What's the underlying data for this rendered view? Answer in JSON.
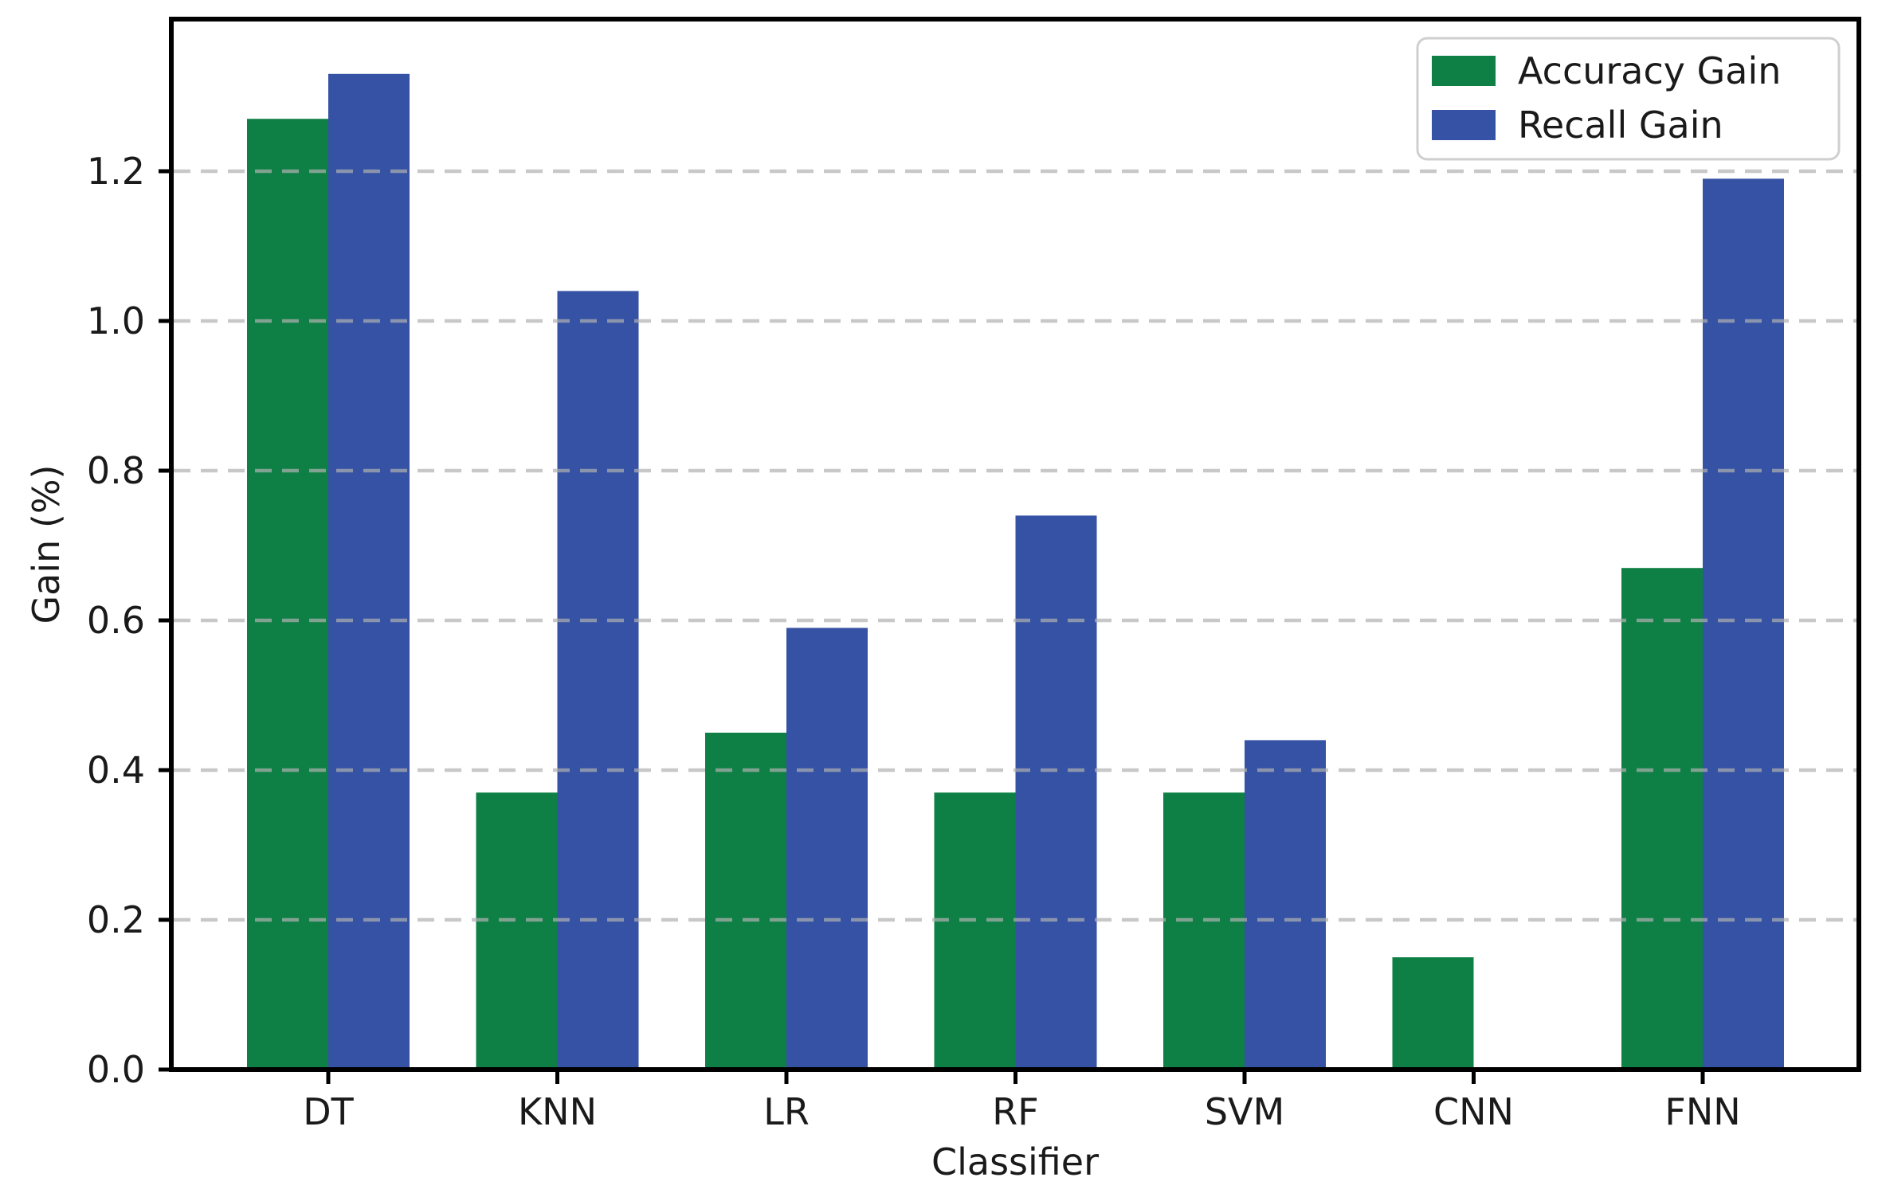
{
  "chart_data": {
    "type": "bar",
    "categories": [
      "DT",
      "KNN",
      "LR",
      "RF",
      "SVM",
      "CNN",
      "FNN"
    ],
    "series": [
      {
        "name": "Accuracy Gain",
        "color": "#0e8045",
        "values": [
          1.27,
          0.37,
          0.45,
          0.37,
          0.37,
          0.15,
          0.67
        ]
      },
      {
        "name": "Recall Gain",
        "color": "#3552a5",
        "values": [
          1.33,
          1.04,
          0.59,
          0.74,
          0.44,
          0.0,
          1.19
        ]
      }
    ],
    "title": "",
    "xlabel": "Classifier",
    "ylabel": "Gain (%)",
    "ylim": [
      0,
      1.4
    ],
    "yticks": [
      "0.0",
      "0.2",
      "0.4",
      "0.6",
      "0.8",
      "1.0",
      "1.2"
    ],
    "grid": "horizontal-dashed",
    "legend_position": "upper-right",
    "colors": {
      "background": "#ffffff",
      "spine": "#000000",
      "grid": "#b0b0b0",
      "text": "#1a1a1a",
      "accuracy_bar": "#0e8045",
      "recall_bar": "#3552a5",
      "legend_border": "#cfcfcf"
    }
  }
}
